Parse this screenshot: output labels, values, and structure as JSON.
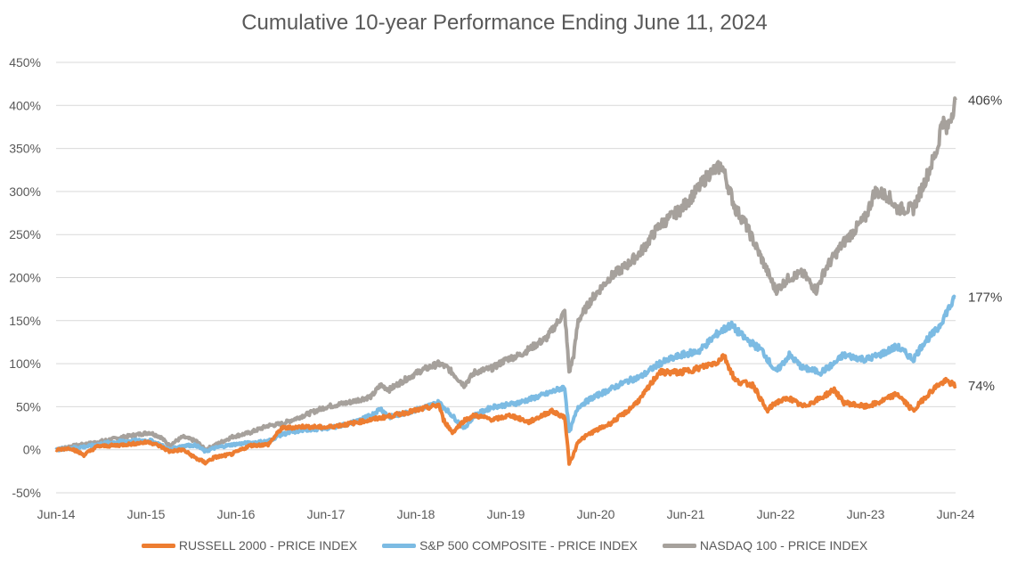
{
  "chart_data": {
    "type": "line",
    "title": "Cumulative 10-year Performance Ending June 11, 2024",
    "xlabel": "",
    "ylabel": "",
    "x_ticks": [
      "Jun-14",
      "Jun-15",
      "Jun-16",
      "Jun-17",
      "Jun-18",
      "Jun-19",
      "Jun-20",
      "Jun-21",
      "Jun-22",
      "Jun-23",
      "Jun-24"
    ],
    "y_ticks": [
      "-50%",
      "0%",
      "50%",
      "100%",
      "150%",
      "200%",
      "250%",
      "300%",
      "350%",
      "400%",
      "450%"
    ],
    "ylim": [
      -50,
      450
    ],
    "xlim": [
      2014.44,
      2024.45
    ],
    "grid": "horizontal",
    "legend_position": "bottom",
    "series": [
      {
        "name": "RUSSELL 2000 - PRICE INDEX",
        "color": "#ED7D31",
        "end_label": "74%",
        "x": [
          2014.44,
          2014.6,
          2014.75,
          2014.9,
          2015.1,
          2015.3,
          2015.48,
          2015.6,
          2015.7,
          2015.85,
          2016.0,
          2016.1,
          2016.2,
          2016.4,
          2016.6,
          2016.8,
          2016.95,
          2017.2,
          2017.45,
          2017.7,
          2017.95,
          2018.2,
          2018.5,
          2018.7,
          2018.75,
          2018.85,
          2018.98,
          2019.1,
          2019.3,
          2019.5,
          2019.7,
          2019.95,
          2020.1,
          2020.15,
          2020.2,
          2020.25,
          2020.4,
          2020.6,
          2020.8,
          2020.95,
          2021.15,
          2021.4,
          2021.6,
          2021.8,
          2021.87,
          2022.0,
          2022.2,
          2022.35,
          2022.45,
          2022.6,
          2022.75,
          2022.95,
          2023.1,
          2023.2,
          2023.45,
          2023.6,
          2023.8,
          2023.98,
          2024.1,
          2024.25,
          2024.35,
          2024.45
        ],
        "y": [
          0,
          2,
          -6,
          4,
          5,
          7,
          9,
          4,
          -2,
          0,
          -10,
          -15,
          -9,
          -5,
          5,
          6,
          25,
          27,
          26,
          30,
          35,
          40,
          47,
          52,
          35,
          20,
          34,
          40,
          35,
          40,
          32,
          45,
          38,
          -15,
          -5,
          10,
          20,
          30,
          45,
          60,
          90,
          90,
          95,
          102,
          110,
          80,
          75,
          45,
          55,
          60,
          50,
          60,
          70,
          55,
          50,
          55,
          65,
          45,
          60,
          75,
          80,
          74
        ]
      },
      {
        "name": "S&P 500 COMPOSITE - PRICE INDEX",
        "color": "#7CBBE3",
        "end_label": "177%",
        "x": [
          2014.44,
          2014.6,
          2014.8,
          2015.0,
          2015.2,
          2015.48,
          2015.6,
          2015.7,
          2015.85,
          2016.0,
          2016.1,
          2016.2,
          2016.4,
          2016.6,
          2016.8,
          2016.95,
          2017.2,
          2017.45,
          2017.7,
          2017.95,
          2018.05,
          2018.15,
          2018.3,
          2018.5,
          2018.7,
          2018.8,
          2018.98,
          2019.1,
          2019.3,
          2019.45,
          2019.6,
          2019.9,
          2020.1,
          2020.15,
          2020.2,
          2020.25,
          2020.4,
          2020.6,
          2020.8,
          2020.95,
          2021.15,
          2021.4,
          2021.6,
          2021.8,
          2021.95,
          2022.1,
          2022.3,
          2022.45,
          2022.6,
          2022.75,
          2022.95,
          2023.1,
          2023.2,
          2023.45,
          2023.6,
          2023.8,
          2023.98,
          2024.1,
          2024.25,
          2024.35,
          2024.45
        ],
        "y": [
          0,
          2,
          4,
          8,
          10,
          11,
          6,
          0,
          5,
          5,
          -2,
          2,
          6,
          8,
          10,
          18,
          23,
          25,
          30,
          40,
          48,
          38,
          42,
          48,
          55,
          45,
          25,
          40,
          50,
          52,
          55,
          65,
          73,
          20,
          35,
          50,
          60,
          70,
          80,
          85,
          100,
          110,
          115,
          135,
          145,
          130,
          115,
          90,
          110,
          95,
          90,
          100,
          110,
          105,
          110,
          120,
          105,
          125,
          140,
          160,
          177
        ]
      },
      {
        "name": "NASDAQ 100 - PRICE INDEX",
        "color": "#A6A19C",
        "end_label": "406%",
        "x": [
          2014.44,
          2014.6,
          2014.8,
          2015.0,
          2015.2,
          2015.48,
          2015.6,
          2015.7,
          2015.85,
          2016.0,
          2016.1,
          2016.2,
          2016.4,
          2016.6,
          2016.8,
          2016.95,
          2017.2,
          2017.45,
          2017.7,
          2017.95,
          2018.05,
          2018.15,
          2018.3,
          2018.5,
          2018.7,
          2018.8,
          2018.98,
          2019.1,
          2019.3,
          2019.45,
          2019.6,
          2019.9,
          2020.1,
          2020.15,
          2020.2,
          2020.25,
          2020.4,
          2020.6,
          2020.8,
          2020.95,
          2021.15,
          2021.4,
          2021.6,
          2021.7,
          2021.85,
          2022.0,
          2022.1,
          2022.3,
          2022.45,
          2022.6,
          2022.75,
          2022.9,
          2023.0,
          2023.2,
          2023.45,
          2023.55,
          2023.7,
          2023.8,
          2023.98,
          2024.1,
          2024.25,
          2024.3,
          2024.35,
          2024.45
        ],
        "y": [
          0,
          4,
          7,
          11,
          15,
          20,
          15,
          5,
          15,
          10,
          0,
          5,
          15,
          20,
          28,
          30,
          40,
          50,
          55,
          62,
          75,
          70,
          80,
          92,
          100,
          95,
          75,
          90,
          95,
          105,
          110,
          130,
          160,
          90,
          110,
          150,
          175,
          200,
          215,
          230,
          260,
          280,
          305,
          320,
          330,
          280,
          265,
          220,
          185,
          200,
          205,
          185,
          210,
          240,
          270,
          300,
          295,
          280,
          280,
          310,
          350,
          385,
          370,
          406
        ]
      }
    ]
  }
}
